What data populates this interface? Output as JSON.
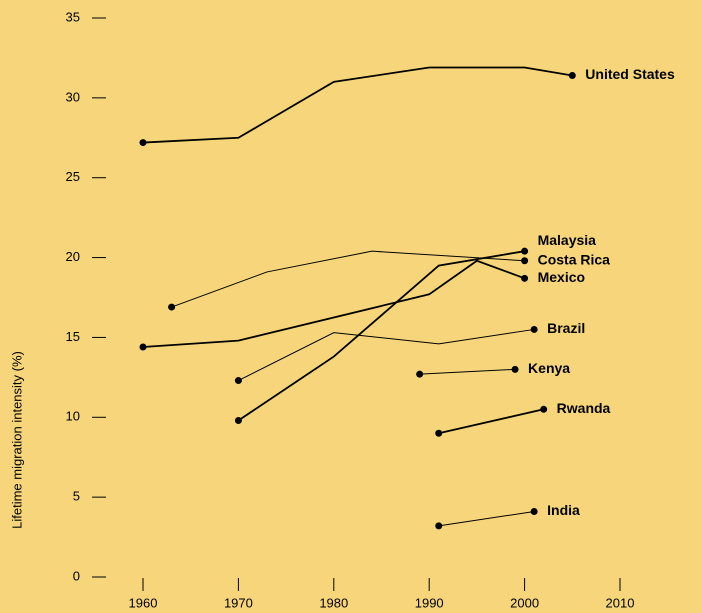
{
  "chart_data": {
    "type": "line",
    "y_label": "Lifetime migration intensity (%)",
    "xlim": [
      1960,
      2010
    ],
    "xticks": [
      1960,
      1970,
      1980,
      1990,
      2000,
      2010
    ],
    "ylim": [
      0,
      35
    ],
    "yticks": [
      0,
      5,
      10,
      15,
      20,
      25,
      30,
      35
    ],
    "series": [
      {
        "name": "United States",
        "color": "#000000",
        "width": 1.8,
        "x": [
          1960,
          1970,
          1980,
          1990,
          2000,
          2005
        ],
        "values": [
          27.2,
          27.5,
          31.0,
          31.9,
          31.9,
          31.4
        ]
      },
      {
        "name": "Malaysia",
        "color": "#000000",
        "width": 1.8,
        "x": [
          1970,
          1980,
          1991,
          2000
        ],
        "values": [
          9.8,
          13.8,
          19.5,
          20.4
        ]
      },
      {
        "name": "Costa Rica",
        "color": "#000000",
        "width": 1,
        "x": [
          1963,
          1973,
          1984,
          2000
        ],
        "values": [
          16.9,
          19.1,
          20.4,
          19.8
        ]
      },
      {
        "name": "Mexico",
        "color": "#000000",
        "width": 1.8,
        "x": [
          1960,
          1970,
          1990,
          1995,
          2000
        ],
        "values": [
          14.4,
          14.8,
          17.7,
          19.8,
          18.7
        ]
      },
      {
        "name": "Brazil",
        "color": "#000000",
        "width": 1,
        "x": [
          1970,
          1980,
          1991,
          2001
        ],
        "values": [
          12.3,
          15.3,
          14.6,
          15.5
        ]
      },
      {
        "name": "Kenya",
        "color": "#000000",
        "width": 1,
        "x": [
          1989,
          1999
        ],
        "values": [
          12.7,
          13.0
        ]
      },
      {
        "name": "Rwanda",
        "color": "#000000",
        "width": 1.8,
        "x": [
          1991,
          2002
        ],
        "values": [
          9.0,
          10.5
        ]
      },
      {
        "name": "India",
        "color": "#000000",
        "width": 1,
        "x": [
          1991,
          2001
        ],
        "values": [
          3.2,
          4.1
        ]
      }
    ]
  }
}
